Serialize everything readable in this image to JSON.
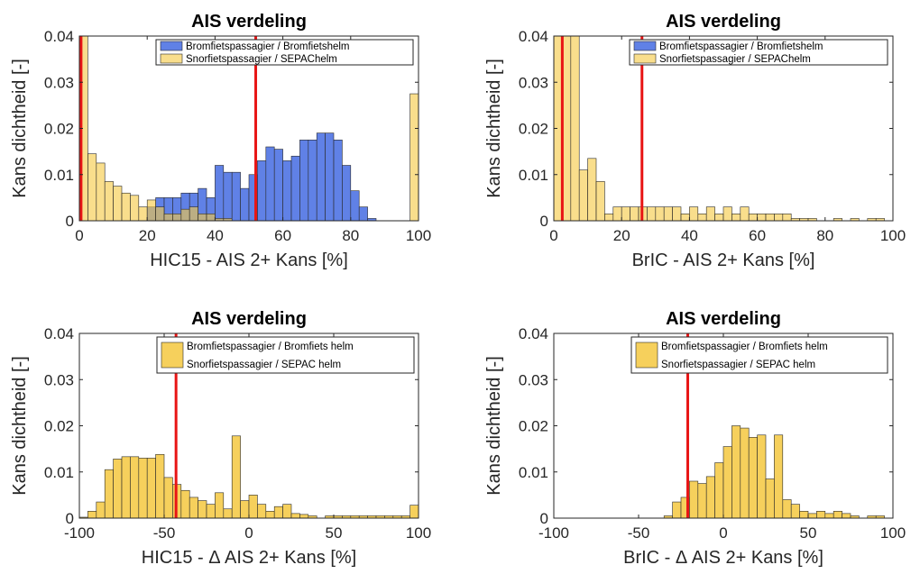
{
  "chart_data": [
    {
      "type": "histogram",
      "title": "AIS verdeling",
      "xlabel": "HIC15 - AIS 2+ Kans [%]",
      "ylabel": "Kans dichtheid [-]",
      "xlim": [
        0,
        100
      ],
      "ylim": [
        0,
        0.04
      ],
      "xticks": [
        0,
        20,
        40,
        60,
        80,
        100
      ],
      "yticks": [
        0,
        0.01,
        0.02,
        0.03,
        0.04
      ],
      "ytick_labels": [
        "0",
        "0.01",
        "0.02",
        "0.03",
        "0.04"
      ],
      "bin_width": 2.5,
      "series": [
        {
          "name": "Bromfietspassagier / Bromfietshelm",
          "color": "#4a6fe3",
          "values": [
            0.0,
            0.0,
            0.0,
            0.0,
            0.0,
            0.0,
            0.0,
            0.0,
            0.003,
            0.005,
            0.005,
            0.005,
            0.006,
            0.006,
            0.007,
            0.005,
            0.012,
            0.0105,
            0.0105,
            0.007,
            0.01,
            0.013,
            0.016,
            0.0155,
            0.013,
            0.014,
            0.0175,
            0.0175,
            0.019,
            0.019,
            0.0175,
            0.012,
            0.0065,
            0.003,
            0.0005,
            0.0,
            0.0,
            0.0,
            0.0,
            0.0
          ]
        },
        {
          "name": "Snorfietspassagier / SEPAChelm",
          "color": "#f5c945",
          "values": [
            0.04,
            0.0145,
            0.0125,
            0.0085,
            0.0075,
            0.006,
            0.0055,
            0.003,
            0.0045,
            0.003,
            0.0015,
            0.0015,
            0.0025,
            0.003,
            0.0015,
            0.0015,
            0.0005,
            0.0005,
            0.0,
            0.0,
            0.0,
            0.0,
            0.0,
            0.0,
            0.0,
            0.0,
            0.0,
            0.0,
            0.0,
            0.0,
            0.0,
            0.0,
            0.0,
            0.0,
            0.0,
            0.0,
            0.0,
            0.0,
            0.0,
            0.0275
          ]
        }
      ],
      "vlines": [
        0.5,
        52
      ],
      "legend": "top-right"
    },
    {
      "type": "histogram",
      "title": "AIS verdeling",
      "xlabel": "BrIC - AIS 2+ Kans [%]",
      "ylabel": "Kans dichtheid [-]",
      "xlim": [
        0,
        100
      ],
      "ylim": [
        0,
        0.04
      ],
      "xticks": [
        0,
        20,
        40,
        60,
        80,
        100
      ],
      "yticks": [
        0,
        0.01,
        0.02,
        0.03,
        0.04
      ],
      "ytick_labels": [
        "0",
        "0.01",
        "0.02",
        "0.03",
        "0.04"
      ],
      "bin_width": 2.5,
      "series": [
        {
          "name": "Bromfietspassagier / Bromfietshelm",
          "color": "#4a6fe3",
          "values": [
            0.0,
            0.0,
            0.0,
            0.0,
            0.0,
            0.0,
            0.0,
            0.0,
            0.0,
            0.0,
            0.0,
            0.0,
            0.0,
            0.0,
            0.0,
            0.0,
            0.0,
            0.0,
            0.0,
            0.0,
            0.0,
            0.0,
            0.0,
            0.0,
            0.0,
            0.0,
            0.0,
            0.0,
            0.0,
            0.0,
            0.0,
            0.0,
            0.0,
            0.0,
            0.0,
            0.0,
            0.0,
            0.0,
            0.0,
            0.0
          ]
        },
        {
          "name": "Snorfietspassagier / SEPAChelm",
          "color": "#f5c945",
          "values": [
            0.04,
            0.04,
            0.04,
            0.011,
            0.0135,
            0.0085,
            0.0015,
            0.003,
            0.003,
            0.003,
            0.003,
            0.003,
            0.003,
            0.003,
            0.003,
            0.0015,
            0.003,
            0.0015,
            0.003,
            0.0015,
            0.003,
            0.0015,
            0.003,
            0.0015,
            0.0015,
            0.0015,
            0.0015,
            0.0015,
            0.0005,
            0.0005,
            0.0005,
            0.0,
            0.0,
            0.0005,
            0.0,
            0.0005,
            0.0,
            0.0005,
            0.0005,
            0.0
          ]
        }
      ],
      "vlines": [
        2.5,
        26
      ],
      "legend": "top-right"
    },
    {
      "type": "histogram",
      "title": "AIS verdeling",
      "xlabel": "HIC15 - Δ AIS 2+ Kans [%]",
      "ylabel": "Kans dichtheid [-]",
      "xlim": [
        -100,
        100
      ],
      "ylim": [
        0,
        0.04
      ],
      "xticks": [
        -100,
        -50,
        0,
        50,
        100
      ],
      "yticks": [
        0,
        0.01,
        0.02,
        0.03,
        0.04
      ],
      "ytick_labels": [
        "0",
        "0.01",
        "0.02",
        "0.03",
        "0.04"
      ],
      "bin_width": 5,
      "series": [
        {
          "name": "Bromfietspassagier / Bromfiets helm",
          "color": "#f5c945",
          "values": [
            0.0002,
            0.0015,
            0.0035,
            0.0105,
            0.0128,
            0.0133,
            0.0133,
            0.013,
            0.013,
            0.0138,
            0.0088,
            0.0073,
            0.006,
            0.0045,
            0.0038,
            0.003,
            0.0055,
            0.002,
            0.0178,
            0.0038,
            0.005,
            0.003,
            0.0015,
            0.0025,
            0.003,
            0.001,
            0.0008,
            0.0005,
            0.0,
            0.0005,
            0.0005,
            0.0005,
            0.0005,
            0.0005,
            0.0005,
            0.0005,
            0.0005,
            0.0005,
            0.0005,
            0.0028
          ]
        },
        {
          "name": "Snorfietspassagier / SEPAC helm",
          "color": "#ffffff",
          "values": []
        }
      ],
      "vlines": [
        -43
      ],
      "legend": "top-right"
    },
    {
      "type": "histogram",
      "title": "AIS verdeling",
      "xlabel": "BrIC - Δ AIS 2+ Kans [%]",
      "ylabel": "Kans dichtheid [-]",
      "xlim": [
        -100,
        100
      ],
      "ylim": [
        0,
        0.04
      ],
      "xticks": [
        -100,
        -50,
        0,
        50,
        100
      ],
      "yticks": [
        0,
        0.01,
        0.02,
        0.03,
        0.04
      ],
      "ytick_labels": [
        "0",
        "0.01",
        "0.02",
        "0.03",
        "0.04"
      ],
      "bin_width": 5,
      "series": [
        {
          "name": "Bromfietspassagier / Bromfiets helm",
          "color": "#f5c945",
          "values": [
            0.0,
            0.0,
            0.0,
            0.0,
            0.0,
            0.0,
            0.0,
            0.0,
            0.0,
            0.0,
            0.0,
            0.0,
            0.0,
            0.0005,
            0.0035,
            0.0045,
            0.008,
            0.0075,
            0.009,
            0.012,
            0.0155,
            0.02,
            0.0195,
            0.0175,
            0.018,
            0.0085,
            0.018,
            0.004,
            0.003,
            0.0015,
            0.001,
            0.0015,
            0.001,
            0.0015,
            0.001,
            0.0005,
            0.0,
            0.0005,
            0.0005,
            0.0
          ]
        },
        {
          "name": "Snorfietspassagier / SEPAC helm",
          "color": "#ffffff",
          "values": []
        }
      ],
      "vlines": [
        -21
      ],
      "legend": "top-right"
    }
  ]
}
